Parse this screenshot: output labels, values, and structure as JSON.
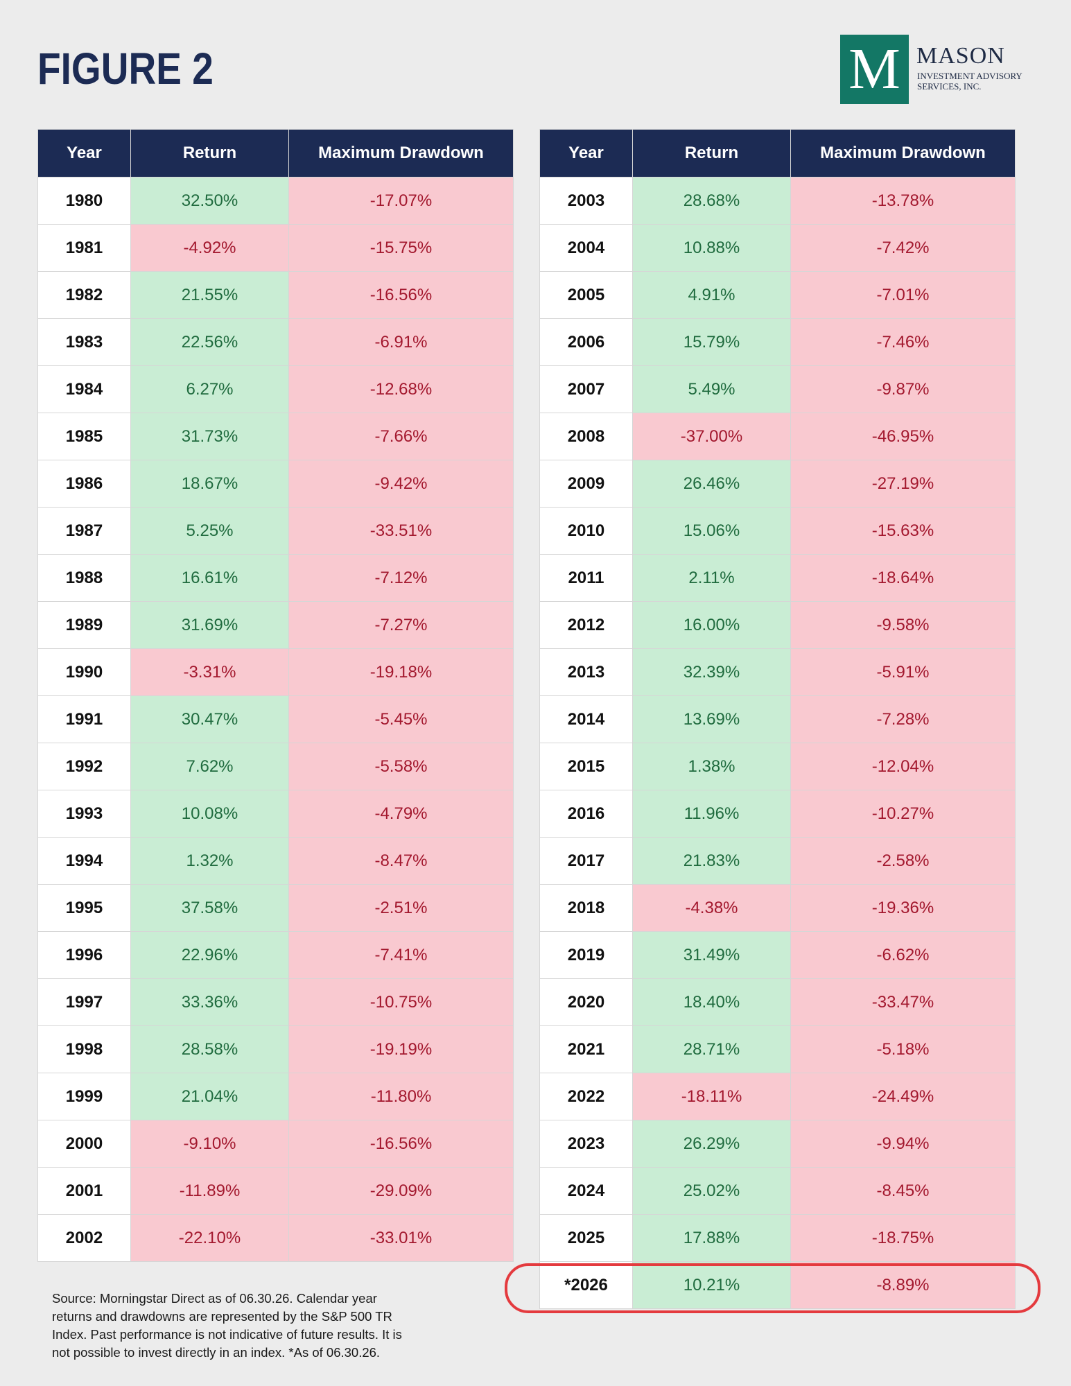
{
  "header": {
    "title": "FIGURE 2",
    "logo": {
      "letter": "M",
      "name": "MASON",
      "sub_line1": "INVESTMENT ADVISORY",
      "sub_line2": "SERVICES, INC."
    }
  },
  "columns": [
    "Year",
    "Return",
    "Maximum Drawdown"
  ],
  "colors": {
    "header_bg": "#1c2b54",
    "positive_bg": "#c9edd4",
    "negative_bg": "#f9c9d0",
    "highlight": "#e43a3e"
  },
  "chart_data": {
    "type": "table",
    "columns": [
      "Year",
      "Return",
      "Maximum Drawdown"
    ],
    "rows": [
      [
        "1980",
        "32.50%",
        "-17.07%"
      ],
      [
        "1981",
        "-4.92%",
        "-15.75%"
      ],
      [
        "1982",
        "21.55%",
        "-16.56%"
      ],
      [
        "1983",
        "22.56%",
        "-6.91%"
      ],
      [
        "1984",
        "6.27%",
        "-12.68%"
      ],
      [
        "1985",
        "31.73%",
        "-7.66%"
      ],
      [
        "1986",
        "18.67%",
        "-9.42%"
      ],
      [
        "1987",
        "5.25%",
        "-33.51%"
      ],
      [
        "1988",
        "16.61%",
        "-7.12%"
      ],
      [
        "1989",
        "31.69%",
        "-7.27%"
      ],
      [
        "1990",
        "-3.31%",
        "-19.18%"
      ],
      [
        "1991",
        "30.47%",
        "-5.45%"
      ],
      [
        "1992",
        "7.62%",
        "-5.58%"
      ],
      [
        "1993",
        "10.08%",
        "-4.79%"
      ],
      [
        "1994",
        "1.32%",
        "-8.47%"
      ],
      [
        "1995",
        "37.58%",
        "-2.51%"
      ],
      [
        "1996",
        "22.96%",
        "-7.41%"
      ],
      [
        "1997",
        "33.36%",
        "-10.75%"
      ],
      [
        "1998",
        "28.58%",
        "-19.19%"
      ],
      [
        "1999",
        "21.04%",
        "-11.80%"
      ],
      [
        "2000",
        "-9.10%",
        "-16.56%"
      ],
      [
        "2001",
        "-11.89%",
        "-29.09%"
      ],
      [
        "2002",
        "-22.10%",
        "-33.01%"
      ],
      [
        "2003",
        "28.68%",
        "-13.78%"
      ],
      [
        "2004",
        "10.88%",
        "-7.42%"
      ],
      [
        "2005",
        "4.91%",
        "-7.01%"
      ],
      [
        "2006",
        "15.79%",
        "-7.46%"
      ],
      [
        "2007",
        "5.49%",
        "-9.87%"
      ],
      [
        "2008",
        "-37.00%",
        "-46.95%"
      ],
      [
        "2009",
        "26.46%",
        "-27.19%"
      ],
      [
        "2010",
        "15.06%",
        "-15.63%"
      ],
      [
        "2011",
        "2.11%",
        "-18.64%"
      ],
      [
        "2012",
        "16.00%",
        "-9.58%"
      ],
      [
        "2013",
        "32.39%",
        "-5.91%"
      ],
      [
        "2014",
        "13.69%",
        "-7.28%"
      ],
      [
        "2015",
        "1.38%",
        "-12.04%"
      ],
      [
        "2016",
        "11.96%",
        "-10.27%"
      ],
      [
        "2017",
        "21.83%",
        "-2.58%"
      ],
      [
        "2018",
        "-4.38%",
        "-19.36%"
      ],
      [
        "2019",
        "31.49%",
        "-6.62%"
      ],
      [
        "2020",
        "18.40%",
        "-33.47%"
      ],
      [
        "2021",
        "28.71%",
        "-5.18%"
      ],
      [
        "2022",
        "-18.11%",
        "-24.49%"
      ],
      [
        "2023",
        "26.29%",
        "-9.94%"
      ],
      [
        "2024",
        "25.02%",
        "-8.45%"
      ],
      [
        "2025",
        "17.88%",
        "-18.75%"
      ],
      [
        "*2026",
        "10.21%",
        "-8.89%"
      ]
    ],
    "split_after_row": 23,
    "highlighted_row": "*2026"
  },
  "footnote": {
    "line1": "Source: Morningstar Direct as of 06.30.26. Calendar year",
    "line2": "returns and drawdowns are represented by the S&P 500 TR",
    "line3": "Index. Past performance is not indicative of future results. It is",
    "line4": "not possible to invest directly in an index. *As of 06.30.26."
  }
}
